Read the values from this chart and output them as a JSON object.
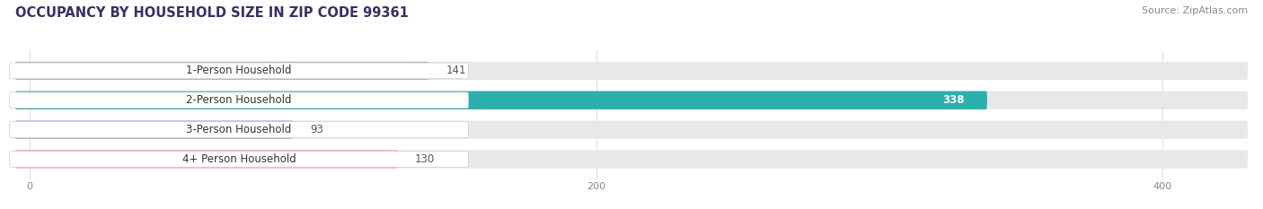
{
  "title": "OCCUPANCY BY HOUSEHOLD SIZE IN ZIP CODE 99361",
  "source": "Source: ZipAtlas.com",
  "categories": [
    "1-Person Household",
    "2-Person Household",
    "3-Person Household",
    "4+ Person Household"
  ],
  "values": [
    141,
    338,
    93,
    130
  ],
  "bar_colors": [
    "#cba8c9",
    "#2ab0ad",
    "#a8acd8",
    "#f2a0bc"
  ],
  "bar_label_colors": [
    "#444444",
    "#ffffff",
    "#444444",
    "#444444"
  ],
  "xlim": [
    -5,
    430
  ],
  "xticks": [
    0,
    200,
    400
  ],
  "background_color": "#ffffff",
  "bar_bg_color": "#e8e8e8",
  "title_color": "#333366",
  "source_color": "#888888",
  "bar_height": 0.62,
  "title_fontsize": 10.5,
  "source_fontsize": 8,
  "label_fontsize": 8.5,
  "value_fontsize": 8.5,
  "tick_fontsize": 8
}
